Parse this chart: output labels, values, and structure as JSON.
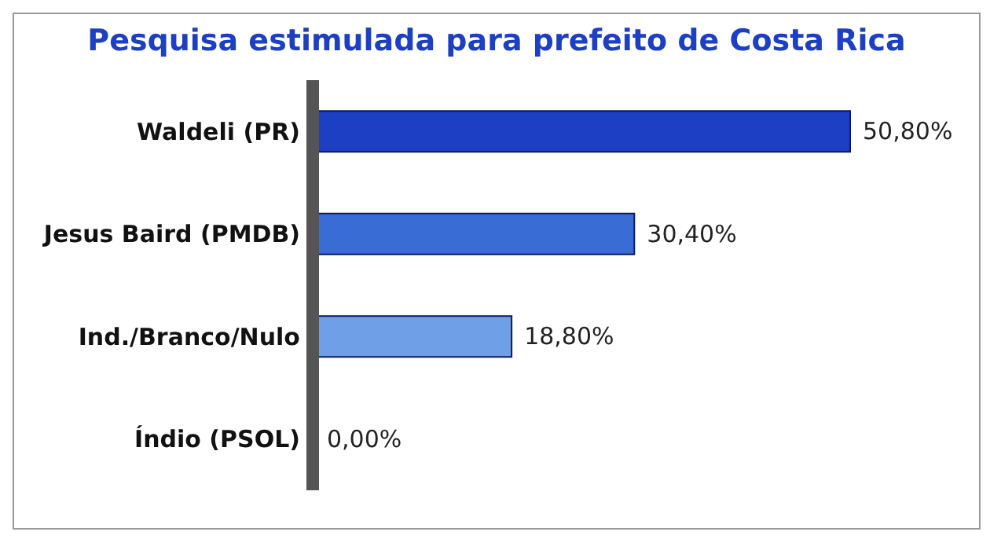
{
  "chart_data": {
    "type": "bar",
    "orientation": "horizontal",
    "title": "Pesquisa estimulada para prefeito de Costa Rica",
    "categories": [
      "Waldeli (PR)",
      "Jesus Baird (PMDB)",
      "Ind./Branco/Nulo",
      "Índio (PSOL)"
    ],
    "values": [
      50.8,
      30.4,
      18.8,
      0
    ],
    "colors": [
      "#1c3fc4",
      "#3a6cd6",
      "#6f9fe6",
      "#9fbff0"
    ],
    "value_labels": [
      "50,80%",
      "30,40%",
      "18,80%",
      "0,00%"
    ]
  }
}
